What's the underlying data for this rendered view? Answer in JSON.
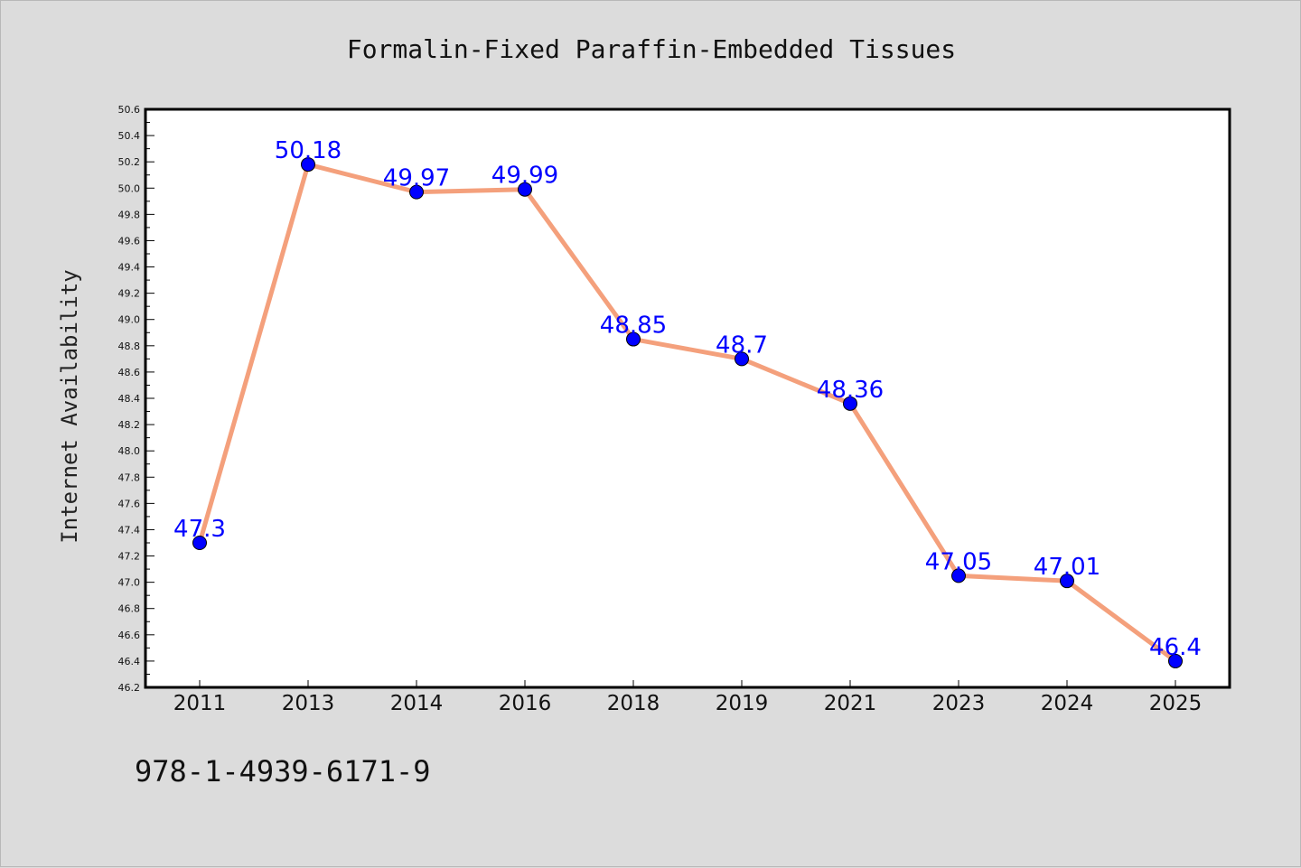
{
  "chart_data": {
    "type": "line",
    "title": "Formalin-Fixed Paraffin-Embedded Tissues",
    "xlabel": "",
    "ylabel": "Internet Availability",
    "categories": [
      "2011",
      "2013",
      "2014",
      "2016",
      "2018",
      "2019",
      "2021",
      "2023",
      "2024",
      "2025"
    ],
    "series": [
      {
        "values": [
          47.3,
          50.18,
          49.97,
          49.99,
          48.85,
          48.7,
          48.36,
          47.05,
          47.01,
          46.4
        ],
        "data_labels": [
          "47.3",
          "50.18",
          "49.97",
          "49.99",
          "48.85",
          "48.7",
          "48.36",
          "47.05",
          "47.01",
          "46.4"
        ]
      }
    ],
    "ylim": [
      46.2,
      50.6
    ],
    "yticks": [
      "46.2",
      "46.4",
      "46.6",
      "46.8",
      "47.0",
      "47.2",
      "47.4",
      "47.6",
      "47.8",
      "48.0",
      "48.2",
      "48.4",
      "48.6",
      "48.8",
      "49.0",
      "49.2",
      "49.4",
      "49.6",
      "49.8",
      "50.0",
      "50.2",
      "50.4",
      "50.6"
    ],
    "grid": false,
    "legend": "none",
    "colors": {
      "line": "#f4a07c",
      "marker": "#0000ff",
      "data_label": "#0000ff",
      "background": "#dcdcdc",
      "plot_area": "#ffffff"
    }
  },
  "footnote": "978-1-4939-6171-9"
}
